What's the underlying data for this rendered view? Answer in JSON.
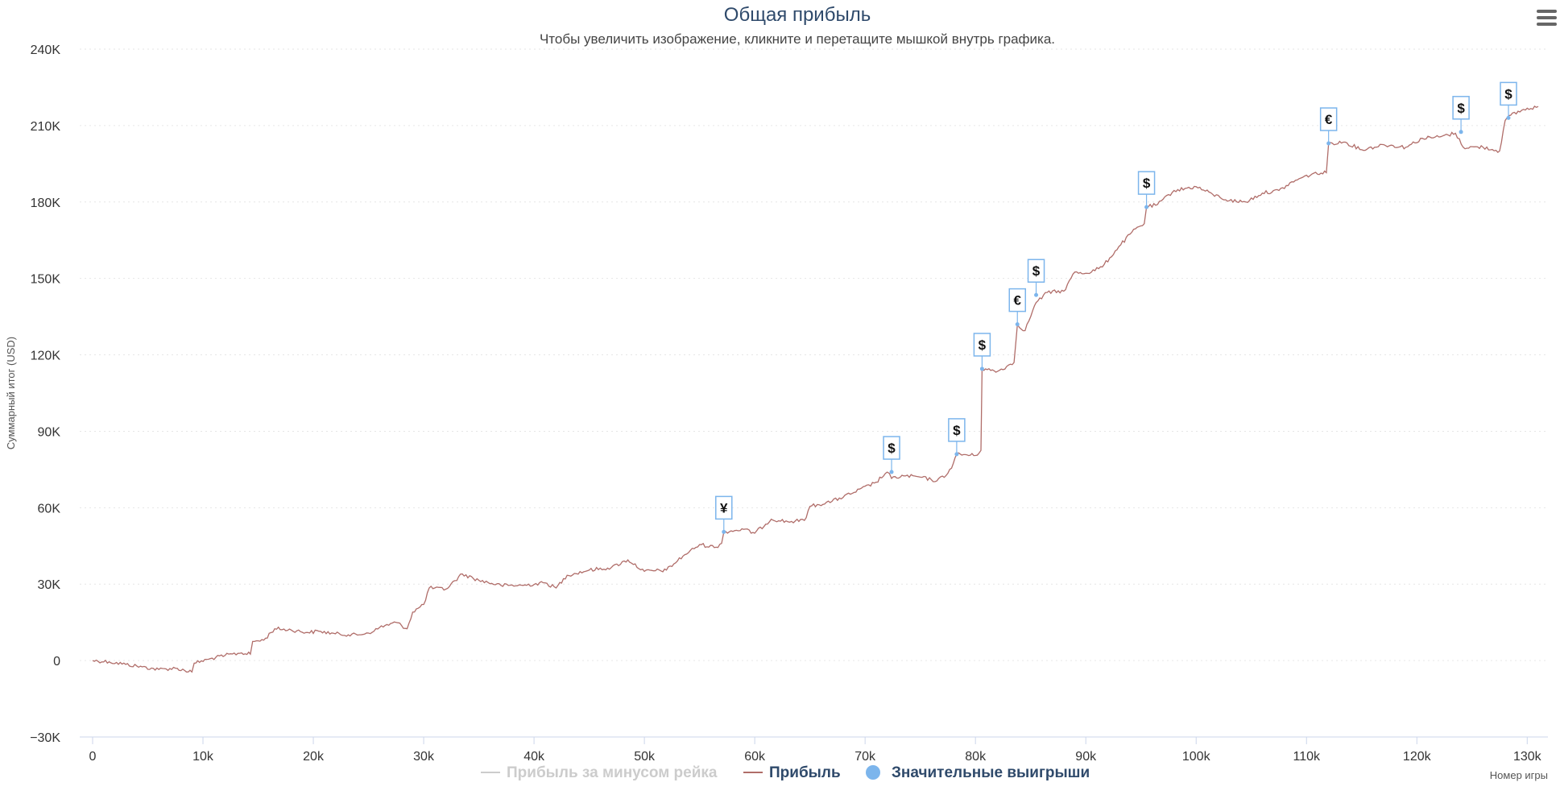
{
  "chart_data": {
    "type": "line",
    "title": "Общая прибыль",
    "subtitle": "Чтобы увеличить изображение, кликните и перетащите мышкой внутрь графика.",
    "ylabel": "Суммарный итог (USD)",
    "xlabel": "Номер игры",
    "ylim": [
      -30000,
      240000
    ],
    "xlim": [
      0,
      131000
    ],
    "y_ticks": [
      {
        "value": 240000,
        "label": "240K"
      },
      {
        "value": 210000,
        "label": "210K"
      },
      {
        "value": 180000,
        "label": "180K"
      },
      {
        "value": 150000,
        "label": "150K"
      },
      {
        "value": 120000,
        "label": "120K"
      },
      {
        "value": 90000,
        "label": "90K"
      },
      {
        "value": 60000,
        "label": "60K"
      },
      {
        "value": 30000,
        "label": "30K"
      },
      {
        "value": 0,
        "label": "0"
      },
      {
        "value": -30000,
        "label": "−30K"
      }
    ],
    "x_ticks": [
      {
        "value": 0,
        "label": "0"
      },
      {
        "value": 10000,
        "label": "10k"
      },
      {
        "value": 20000,
        "label": "20k"
      },
      {
        "value": 30000,
        "label": "30k"
      },
      {
        "value": 40000,
        "label": "40k"
      },
      {
        "value": 50000,
        "label": "50k"
      },
      {
        "value": 60000,
        "label": "60k"
      },
      {
        "value": 70000,
        "label": "70k"
      },
      {
        "value": 80000,
        "label": "80k"
      },
      {
        "value": 90000,
        "label": "90k"
      },
      {
        "value": 100000,
        "label": "100k"
      },
      {
        "value": 110000,
        "label": "110k"
      },
      {
        "value": 120000,
        "label": "120k"
      },
      {
        "value": 130000,
        "label": "130k"
      }
    ],
    "grid": true,
    "legend_position": "bottom",
    "series": [
      {
        "name": "Прибыль",
        "color": "#b06d69",
        "points": [
          [
            0,
            0
          ],
          [
            1500,
            -500
          ],
          [
            3000,
            -1500
          ],
          [
            4500,
            -2500
          ],
          [
            6000,
            -3500
          ],
          [
            7500,
            -3000
          ],
          [
            9000,
            -4500
          ],
          [
            9200,
            -1000
          ],
          [
            10500,
            500
          ],
          [
            12000,
            2000
          ],
          [
            13500,
            3000
          ],
          [
            14300,
            2500
          ],
          [
            14500,
            7500
          ],
          [
            15500,
            8000
          ],
          [
            16500,
            12500
          ],
          [
            18000,
            12000
          ],
          [
            19500,
            11000
          ],
          [
            20500,
            11500
          ],
          [
            22000,
            10500
          ],
          [
            24000,
            10000
          ],
          [
            25500,
            11500
          ],
          [
            26000,
            13000
          ],
          [
            27500,
            15000
          ],
          [
            28500,
            12500
          ],
          [
            29000,
            19000
          ],
          [
            30000,
            22000
          ],
          [
            30500,
            28500
          ],
          [
            32000,
            28000
          ],
          [
            33500,
            34000
          ],
          [
            35000,
            31500
          ],
          [
            37000,
            29500
          ],
          [
            39000,
            29500
          ],
          [
            41000,
            30500
          ],
          [
            42000,
            28500
          ],
          [
            43000,
            33500
          ],
          [
            45000,
            35500
          ],
          [
            47000,
            36500
          ],
          [
            48500,
            39500
          ],
          [
            50000,
            35000
          ],
          [
            52000,
            35500
          ],
          [
            53500,
            41000
          ],
          [
            55000,
            45500
          ],
          [
            56500,
            44500
          ],
          [
            57000,
            46000
          ],
          [
            57200,
            50500
          ],
          [
            59000,
            51500
          ],
          [
            60000,
            50000
          ],
          [
            61500,
            55500
          ],
          [
            63000,
            54500
          ],
          [
            64500,
            55000
          ],
          [
            65000,
            60500
          ],
          [
            67000,
            62500
          ],
          [
            69000,
            66000
          ],
          [
            71000,
            70000
          ],
          [
            72000,
            74000
          ],
          [
            72400,
            71500
          ],
          [
            73500,
            72500
          ],
          [
            75000,
            72000
          ],
          [
            76500,
            70500
          ],
          [
            77500,
            73500
          ],
          [
            78000,
            77500
          ],
          [
            78300,
            81000
          ],
          [
            80000,
            80500
          ],
          [
            80500,
            82500
          ],
          [
            80600,
            114500
          ],
          [
            82000,
            113500
          ],
          [
            83500,
            117000
          ],
          [
            83800,
            132000
          ],
          [
            84500,
            129500
          ],
          [
            85200,
            137500
          ],
          [
            85500,
            140500
          ],
          [
            86500,
            144500
          ],
          [
            88000,
            145000
          ],
          [
            89000,
            152500
          ],
          [
            90000,
            152000
          ],
          [
            91500,
            154500
          ],
          [
            93000,
            162500
          ],
          [
            94500,
            169500
          ],
          [
            95300,
            171500
          ],
          [
            95500,
            178000
          ],
          [
            96500,
            179000
          ],
          [
            98000,
            184500
          ],
          [
            100000,
            186000
          ],
          [
            101500,
            183000
          ],
          [
            103000,
            180500
          ],
          [
            104500,
            180000
          ],
          [
            106000,
            183500
          ],
          [
            107500,
            184500
          ],
          [
            109000,
            188500
          ],
          [
            110500,
            191000
          ],
          [
            111800,
            191500
          ],
          [
            112000,
            203000
          ],
          [
            113500,
            203500
          ],
          [
            115000,
            200500
          ],
          [
            117000,
            202500
          ],
          [
            119000,
            201500
          ],
          [
            120500,
            205000
          ],
          [
            122000,
            205500
          ],
          [
            123500,
            207000
          ],
          [
            124200,
            201500
          ],
          [
            126000,
            201500
          ],
          [
            127500,
            200000
          ],
          [
            128000,
            212000
          ],
          [
            128500,
            214000
          ],
          [
            129500,
            216000
          ],
          [
            131000,
            217500
          ]
        ]
      }
    ],
    "significant_wins": [
      {
        "x": 57200,
        "y": 50500,
        "label": "¥"
      },
      {
        "x": 72400,
        "y": 74000,
        "label": "$"
      },
      {
        "x": 78300,
        "y": 81000,
        "label": "$"
      },
      {
        "x": 80600,
        "y": 114500,
        "label": "$"
      },
      {
        "x": 83800,
        "y": 132000,
        "label": "€"
      },
      {
        "x": 85500,
        "y": 143500,
        "label": "$"
      },
      {
        "x": 95500,
        "y": 178000,
        "label": "$"
      },
      {
        "x": 112000,
        "y": 203000,
        "label": "€"
      },
      {
        "x": 124000,
        "y": 207500,
        "label": "$"
      },
      {
        "x": 128300,
        "y": 213000,
        "label": "$"
      }
    ]
  },
  "legend": {
    "items": [
      {
        "label": "Прибыль за минусом рейка",
        "color": "#cccccc",
        "symbol": "line",
        "active": false
      },
      {
        "label": "Прибыль",
        "color": "#b06d69",
        "symbol": "line",
        "active": true
      },
      {
        "label": "Значительные выигрыши",
        "color": "#7cb5ec",
        "symbol": "circle",
        "active": true
      }
    ]
  },
  "menu": {
    "icon": "hamburger-menu-icon"
  },
  "colors": {
    "accent": "#7cb5ec",
    "profit": "#b06d69",
    "title": "#2f4a6b",
    "inactive": "#cccccc"
  }
}
